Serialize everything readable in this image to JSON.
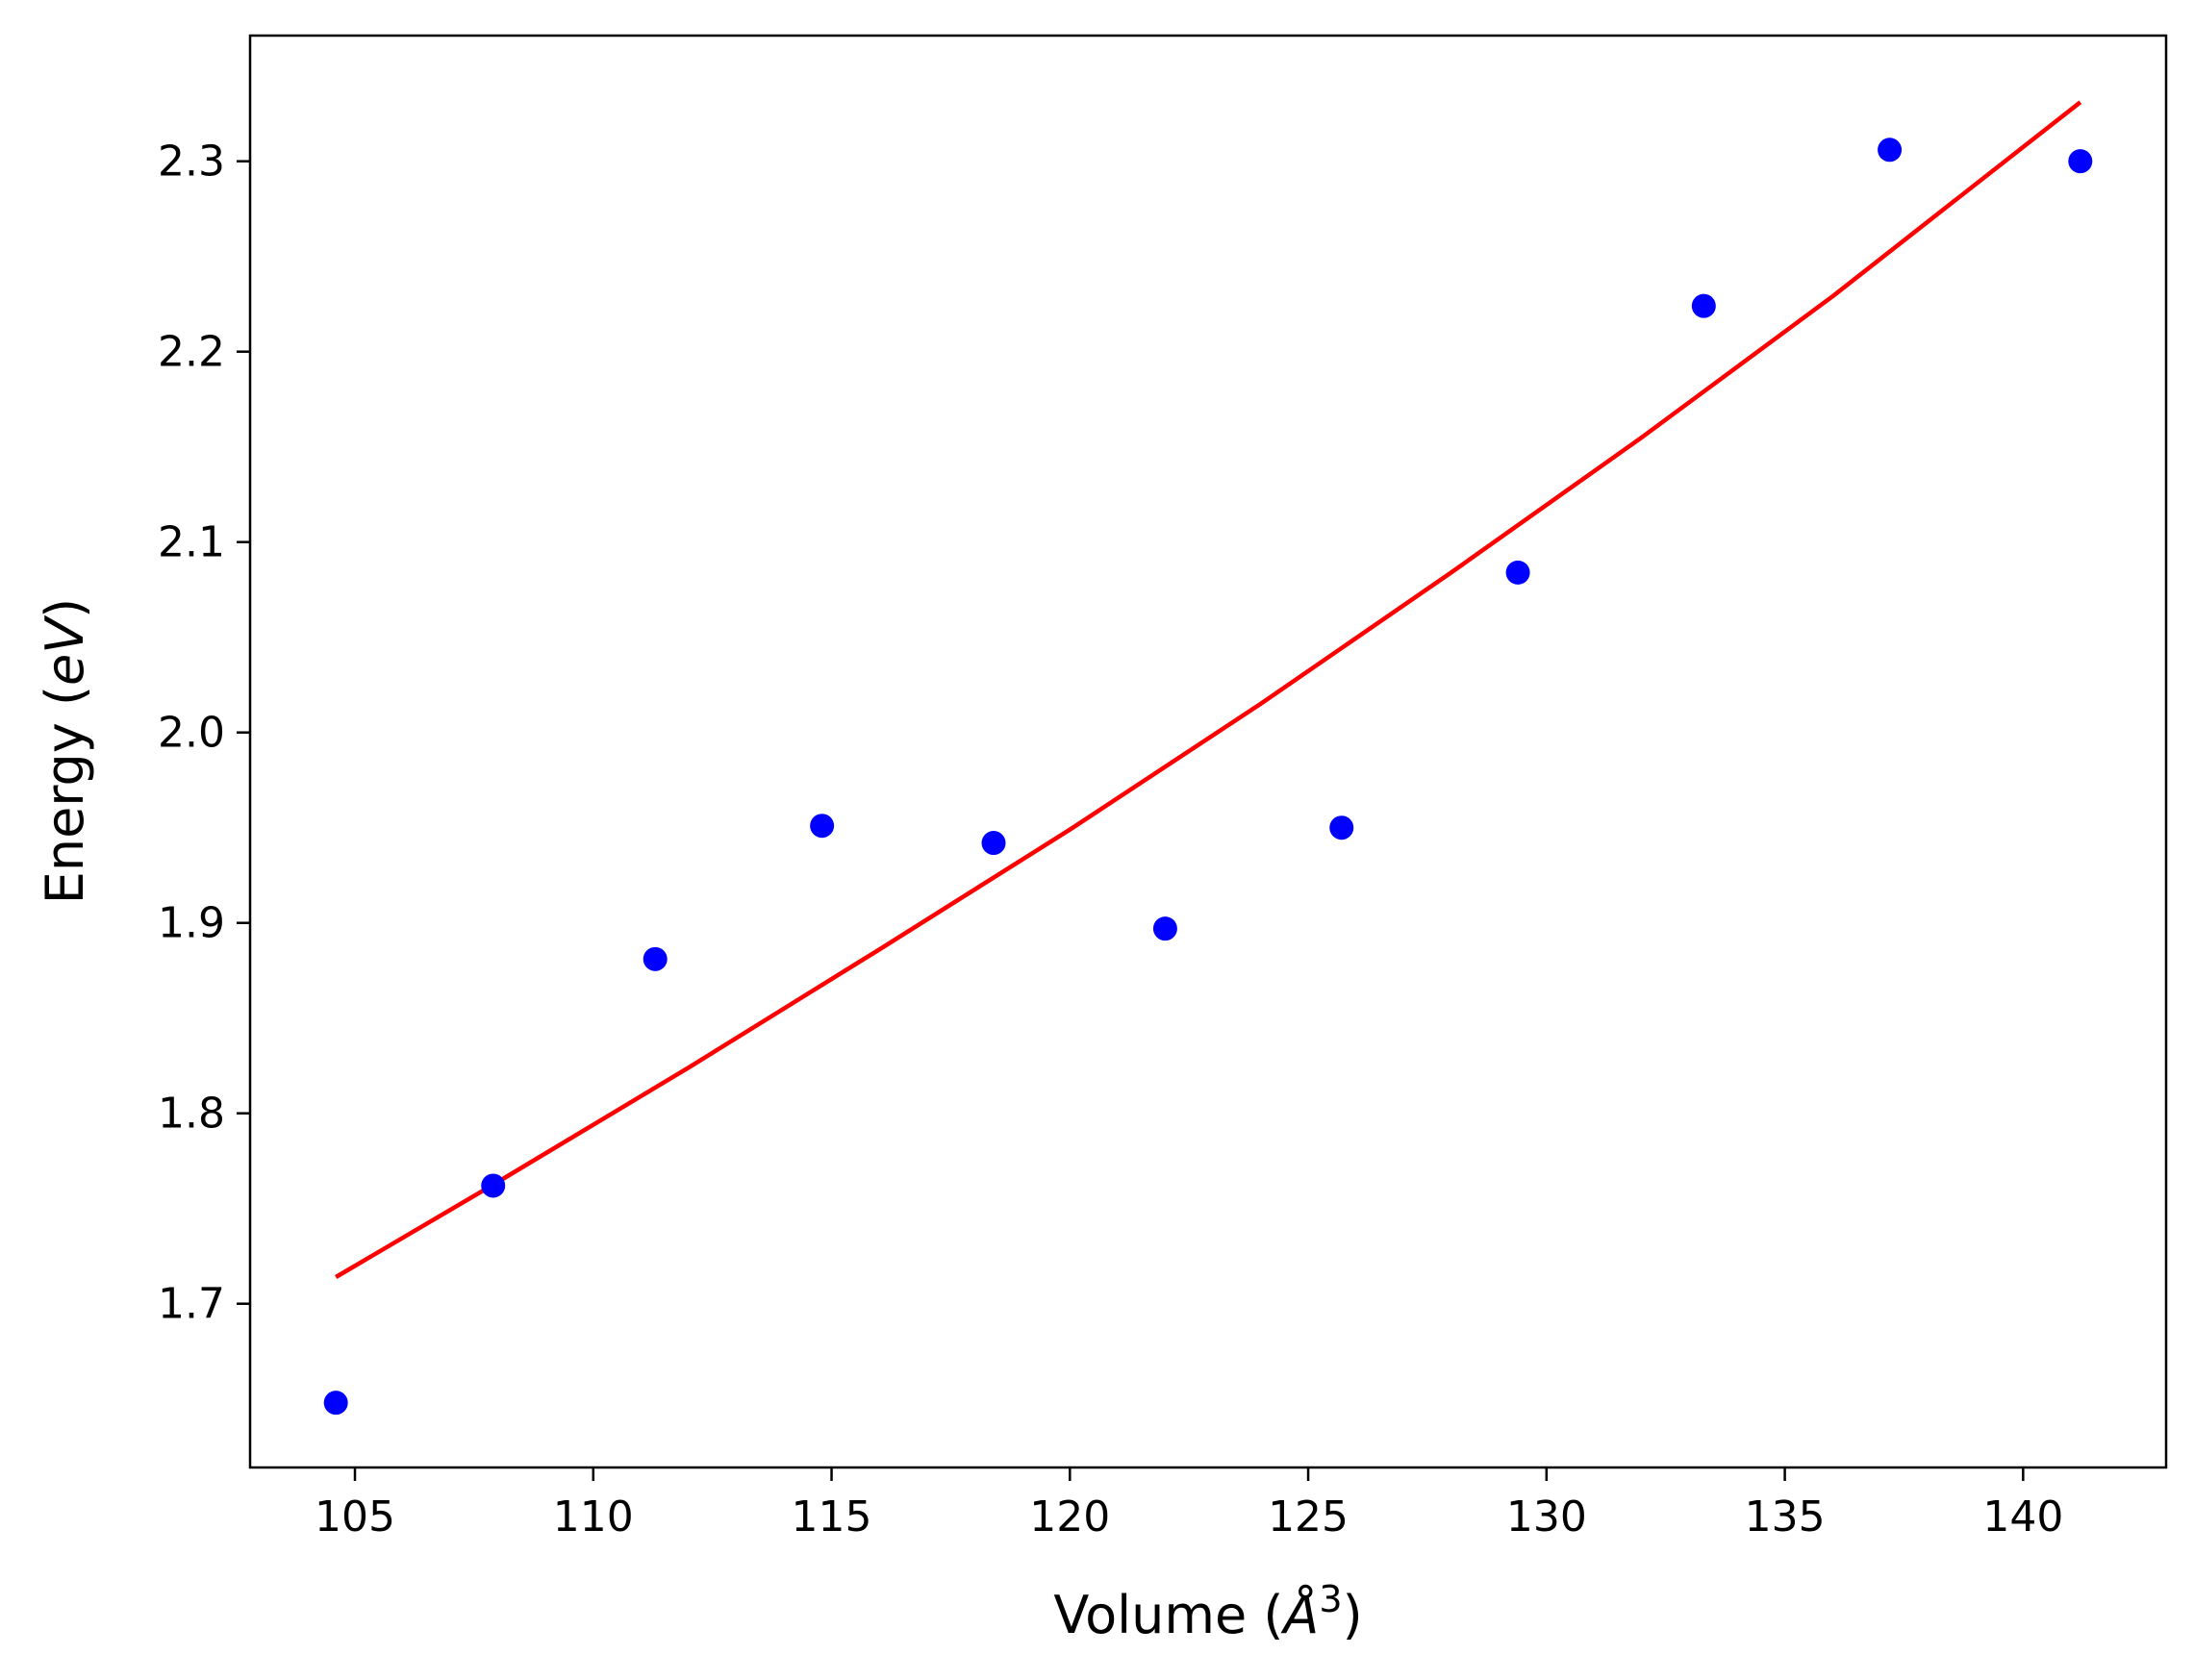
{
  "chart_data": {
    "type": "scatter",
    "xlabel_main": "Volume (",
    "xlabel_symbol": "Å",
    "xlabel_exp": "3",
    "xlabel_close": ")",
    "ylabel_main": "Energy (",
    "ylabel_symbol": "eV",
    "ylabel_close": ")",
    "xlim": [
      102.8,
      143.0
    ],
    "ylim": [
      1.614,
      2.366
    ],
    "x_ticks": [
      105,
      110,
      115,
      120,
      125,
      130,
      135,
      140
    ],
    "x_tick_labels": [
      "105",
      "110",
      "115",
      "120",
      "125",
      "130",
      "135",
      "140"
    ],
    "y_ticks": [
      1.7,
      1.8,
      1.9,
      2.0,
      2.1,
      2.2,
      2.3
    ],
    "y_tick_labels": [
      "1.7",
      "1.8",
      "1.9",
      "2.0",
      "2.1",
      "2.2",
      "2.3"
    ],
    "grid": false,
    "series": [
      {
        "kind": "points",
        "color": "#0000ff",
        "x": [
          104.6,
          107.9,
          111.3,
          114.8,
          118.4,
          122.0,
          125.7,
          129.4,
          133.3,
          137.2,
          141.2
        ],
        "y": [
          1.648,
          1.762,
          1.881,
          1.951,
          1.942,
          1.897,
          1.95,
          2.084,
          2.224,
          2.306,
          2.3
        ]
      },
      {
        "kind": "fit-line",
        "color": "#ff0000",
        "x": [
          104.6,
          108.0,
          112.0,
          116.0,
          120.0,
          124.0,
          128.0,
          132.0,
          136.0,
          141.2
        ],
        "y": [
          1.714,
          1.764,
          1.824,
          1.886,
          1.949,
          2.015,
          2.084,
          2.155,
          2.229,
          2.331
        ]
      }
    ]
  }
}
